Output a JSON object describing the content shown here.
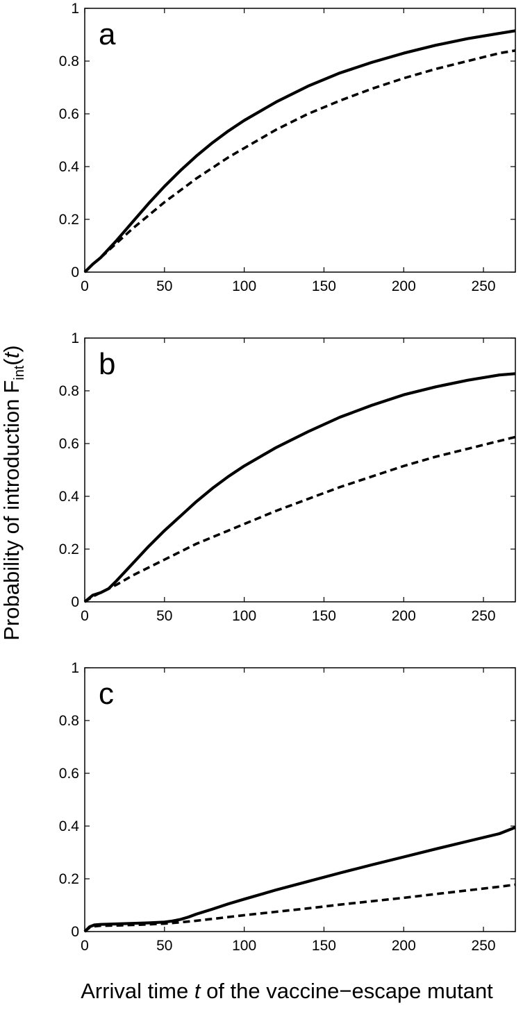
{
  "figure": {
    "ylabel_main": "Probability of introduction",
    "ylabel_func": "F",
    "ylabel_sub": "int",
    "ylabel_open": "(",
    "ylabel_var": "t",
    "ylabel_close": ")",
    "xlabel_pre": "Arrival time ",
    "xlabel_var": "t",
    "xlabel_post": " of the vaccine−escape mutant"
  },
  "chart_data": [
    {
      "type": "line",
      "panel_label": "a",
      "xlim": [
        0,
        270
      ],
      "ylim": [
        0,
        1
      ],
      "xticks": [
        0,
        50,
        100,
        150,
        200,
        250
      ],
      "yticks": [
        0,
        0.2,
        0.4,
        0.6,
        0.8,
        1
      ],
      "ytick_labels": [
        "0",
        "0.2",
        "0.4",
        "0.6",
        "0.8",
        "1"
      ],
      "series": [
        {
          "name": "solid",
          "style": "solid",
          "x": [
            0,
            5,
            10,
            20,
            30,
            40,
            50,
            60,
            70,
            80,
            90,
            100,
            120,
            140,
            160,
            180,
            200,
            220,
            240,
            260,
            270
          ],
          "y": [
            0,
            0.03,
            0.055,
            0.12,
            0.19,
            0.26,
            0.325,
            0.385,
            0.44,
            0.49,
            0.535,
            0.575,
            0.645,
            0.705,
            0.755,
            0.795,
            0.83,
            0.86,
            0.885,
            0.905,
            0.915
          ]
        },
        {
          "name": "dashed",
          "style": "dashed",
          "x": [
            0,
            5,
            10,
            20,
            30,
            40,
            50,
            60,
            70,
            80,
            90,
            100,
            120,
            140,
            160,
            180,
            200,
            220,
            240,
            260,
            270
          ],
          "y": [
            0,
            0.03,
            0.055,
            0.11,
            0.165,
            0.215,
            0.265,
            0.31,
            0.355,
            0.395,
            0.435,
            0.47,
            0.54,
            0.6,
            0.65,
            0.695,
            0.735,
            0.77,
            0.8,
            0.83,
            0.84
          ]
        }
      ]
    },
    {
      "type": "line",
      "panel_label": "b",
      "xlim": [
        0,
        270
      ],
      "ylim": [
        0,
        1
      ],
      "xticks": [
        0,
        50,
        100,
        150,
        200,
        250
      ],
      "yticks": [
        0,
        0.2,
        0.4,
        0.6,
        0.8,
        1
      ],
      "ytick_labels": [
        "0",
        "0.2",
        "0.4",
        "0.6",
        "0.8",
        "1"
      ],
      "series": [
        {
          "name": "solid",
          "style": "solid",
          "x": [
            0,
            5,
            10,
            15,
            20,
            30,
            40,
            50,
            60,
            70,
            80,
            90,
            100,
            120,
            140,
            160,
            180,
            200,
            220,
            240,
            260,
            270
          ],
          "y": [
            0,
            0.025,
            0.035,
            0.05,
            0.08,
            0.145,
            0.21,
            0.27,
            0.325,
            0.38,
            0.43,
            0.475,
            0.515,
            0.585,
            0.645,
            0.7,
            0.745,
            0.785,
            0.815,
            0.84,
            0.86,
            0.865
          ]
        },
        {
          "name": "dashed",
          "style": "dashed",
          "x": [
            0,
            5,
            10,
            20,
            30,
            40,
            50,
            60,
            70,
            80,
            90,
            100,
            120,
            140,
            160,
            180,
            200,
            220,
            240,
            260,
            270
          ],
          "y": [
            0,
            0.02,
            0.035,
            0.065,
            0.1,
            0.13,
            0.16,
            0.19,
            0.22,
            0.245,
            0.27,
            0.295,
            0.345,
            0.39,
            0.435,
            0.475,
            0.515,
            0.55,
            0.58,
            0.61,
            0.625
          ]
        }
      ]
    },
    {
      "type": "line",
      "panel_label": "c",
      "xlim": [
        0,
        270
      ],
      "ylim": [
        0,
        1
      ],
      "xticks": [
        0,
        50,
        100,
        150,
        200,
        250
      ],
      "yticks": [
        0,
        0.2,
        0.4,
        0.6,
        0.8,
        1
      ],
      "ytick_labels": [
        "0",
        "0.2",
        "0.4",
        "0.6",
        "0.8",
        "1"
      ],
      "series": [
        {
          "name": "solid",
          "style": "solid",
          "x": [
            0,
            3,
            6,
            10,
            20,
            30,
            40,
            50,
            55,
            60,
            65,
            70,
            80,
            90,
            100,
            120,
            140,
            160,
            180,
            200,
            220,
            240,
            260,
            270
          ],
          "y": [
            0,
            0.018,
            0.025,
            0.027,
            0.029,
            0.031,
            0.033,
            0.036,
            0.04,
            0.046,
            0.055,
            0.066,
            0.085,
            0.105,
            0.123,
            0.158,
            0.19,
            0.222,
            0.253,
            0.283,
            0.313,
            0.342,
            0.371,
            0.395
          ]
        },
        {
          "name": "dashed",
          "style": "dashed",
          "x": [
            0,
            3,
            6,
            10,
            20,
            30,
            40,
            50,
            60,
            70,
            80,
            90,
            100,
            120,
            140,
            160,
            180,
            200,
            220,
            240,
            260,
            270
          ],
          "y": [
            0,
            0.015,
            0.02,
            0.022,
            0.023,
            0.025,
            0.027,
            0.03,
            0.035,
            0.041,
            0.048,
            0.055,
            0.062,
            0.075,
            0.088,
            0.102,
            0.115,
            0.128,
            0.142,
            0.156,
            0.17,
            0.178
          ]
        }
      ]
    }
  ]
}
